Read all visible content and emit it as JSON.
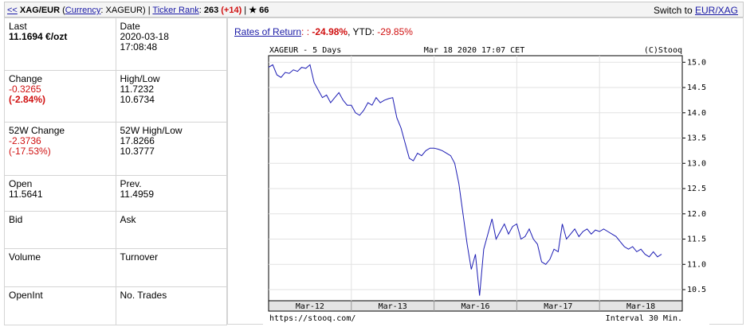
{
  "header": {
    "back": "<<",
    "symbol": "XAG/EUR",
    "open": " (",
    "currency_link": "Currency",
    "currency": ": XAGEUR) | ",
    "rank_link": "Ticker Rank",
    "rank_sep": ": ",
    "rank": "263",
    "rank_change": " (+14)",
    "sep": " | ",
    "stars": "★ 66",
    "switch_text": "Switch to ",
    "switch_link": "EUR/XAG"
  },
  "table": {
    "rows": [
      [
        {
          "label": "Last",
          "lines": [
            "11.1694 €/ozt"
          ]
        },
        {
          "label": "Date",
          "lines": [
            "2020-03-18",
            "17:08:48"
          ]
        }
      ],
      [
        {
          "label": "Change",
          "lines": [
            "-0.3265",
            "(-2.84%)"
          ]
        },
        {
          "label": "High/Low",
          "lines": [
            "11.7232",
            "10.6734"
          ]
        }
      ],
      [
        {
          "label": "52W Change",
          "lines": [
            "-2.3736",
            "(-17.53%)"
          ]
        },
        {
          "label": "52W High/Low",
          "lines": [
            "17.8266",
            "10.3777"
          ]
        }
      ],
      [
        {
          "label": "Open",
          "lines": [
            "11.5641"
          ]
        },
        {
          "label": "Prev.",
          "lines": [
            "11.4959"
          ]
        }
      ],
      [
        {
          "label": "Bid",
          "lines": []
        },
        {
          "label": "Ask",
          "lines": []
        }
      ],
      [
        {
          "label": "Volume",
          "lines": []
        },
        {
          "label": "Turnover",
          "lines": []
        }
      ],
      [
        {
          "label": "OpenInt",
          "lines": []
        },
        {
          "label": "No. Trades",
          "lines": []
        }
      ]
    ]
  },
  "rates": {
    "link": "Rates of Return",
    "sep": ": : ",
    "value": "-24.98%",
    "ytd_label": ", YTD: ",
    "ytd": "-29.85%"
  },
  "chart_data": {
    "type": "line",
    "title": "XAGEUR - 5 Days",
    "subtitle": "Mar 18 2020 17:07 CET",
    "credit": "(C)Stooq",
    "source": "https://stooq.com/",
    "interval": "Interval 30 Min.",
    "categories": [
      "Mar-12",
      "Mar-13",
      "Mar-16",
      "Mar-17",
      "Mar-18"
    ],
    "series": [
      {
        "name": "XAGEUR",
        "color": "#1c1cb4",
        "values": [
          [
            14.9,
            14.95,
            14.75,
            14.7,
            14.8,
            14.78,
            14.85,
            14.82,
            14.9,
            14.88,
            14.95,
            14.6,
            14.45,
            14.3,
            14.35,
            14.2,
            14.3,
            14.4,
            14.25,
            14.15
          ],
          [
            14.15,
            14.0,
            13.95,
            14.05,
            14.2,
            14.15,
            14.3,
            14.2,
            14.25,
            14.28,
            14.3,
            13.9,
            13.7,
            13.4,
            13.1,
            13.05,
            13.2,
            13.15,
            13.25,
            13.3
          ],
          [
            13.3,
            13.28,
            13.25,
            13.2,
            13.15,
            13.0,
            12.6,
            12.0,
            11.4,
            10.9,
            11.2,
            10.38,
            11.3,
            11.6,
            11.9,
            11.5,
            11.65,
            11.8,
            11.6,
            11.75
          ],
          [
            11.8,
            11.5,
            11.55,
            11.7,
            11.5,
            11.4,
            11.05,
            11.0,
            11.1,
            11.3,
            11.25,
            11.8,
            11.5,
            11.6,
            11.7,
            11.55,
            11.65,
            11.7,
            11.6,
            11.68
          ],
          [
            11.65,
            11.7,
            11.65,
            11.6,
            11.55,
            11.45,
            11.35,
            11.3,
            11.35,
            11.25,
            11.3,
            11.2,
            11.15,
            11.25,
            11.15,
            11.2
          ]
        ]
      }
    ],
    "ylim": [
      10.28,
      15.13
    ],
    "yticks": [
      10.5,
      {
        "value": 11,
        "label": "11.0"
      },
      11.5,
      {
        "value": 12,
        "label": "12.0"
      },
      12.5,
      {
        "value": 13,
        "label": "13.0"
      },
      13.5,
      {
        "value": 14,
        "label": "14.0"
      },
      14.5,
      {
        "value": 15,
        "label": "15.0"
      }
    ],
    "grid": true
  }
}
